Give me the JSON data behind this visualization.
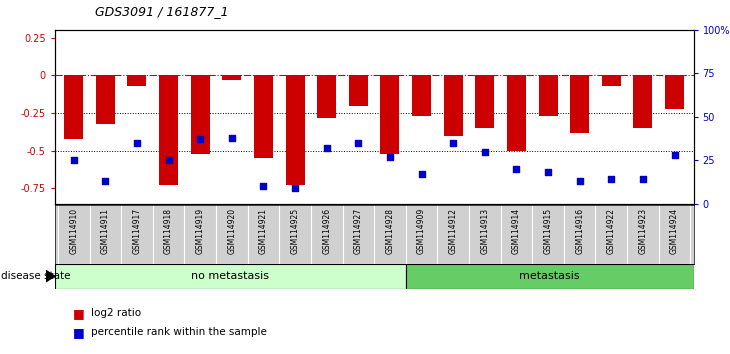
{
  "title": "GDS3091 / 161877_1",
  "samples": [
    "GSM114910",
    "GSM114911",
    "GSM114917",
    "GSM114918",
    "GSM114919",
    "GSM114920",
    "GSM114921",
    "GSM114925",
    "GSM114926",
    "GSM114927",
    "GSM114928",
    "GSM114909",
    "GSM114912",
    "GSM114913",
    "GSM114914",
    "GSM114915",
    "GSM114916",
    "GSM114922",
    "GSM114923",
    "GSM114924"
  ],
  "log2_ratio": [
    -0.42,
    -0.32,
    -0.07,
    -0.73,
    -0.52,
    -0.03,
    -0.55,
    -0.73,
    -0.28,
    -0.2,
    -0.52,
    -0.27,
    -0.4,
    -0.35,
    -0.5,
    -0.27,
    -0.38,
    -0.07,
    -0.35,
    -0.22
  ],
  "percentile_rank": [
    25,
    13,
    35,
    25,
    37,
    38,
    10,
    9,
    32,
    35,
    27,
    17,
    35,
    30,
    20,
    18,
    13,
    14,
    14,
    28
  ],
  "no_metastasis_count": 11,
  "metastasis_count": 9,
  "ylim_left": [
    -0.85,
    0.3
  ],
  "ylim_right": [
    0,
    100
  ],
  "yticks_left": [
    0.25,
    0,
    -0.25,
    -0.5,
    -0.75
  ],
  "yticks_right": [
    100,
    75,
    50,
    25,
    0
  ],
  "bar_color": "#cc0000",
  "dot_color": "#0000cc",
  "hline_color": "#cc0000",
  "dotline_color": "black",
  "no_meta_color": "#ccffcc",
  "meta_color": "#66cc66",
  "label_log2": "log2 ratio",
  "label_pct": "percentile rank within the sample",
  "disease_state_label": "disease state",
  "no_metastasis_label": "no metastasis",
  "metastasis_label": "metastasis"
}
